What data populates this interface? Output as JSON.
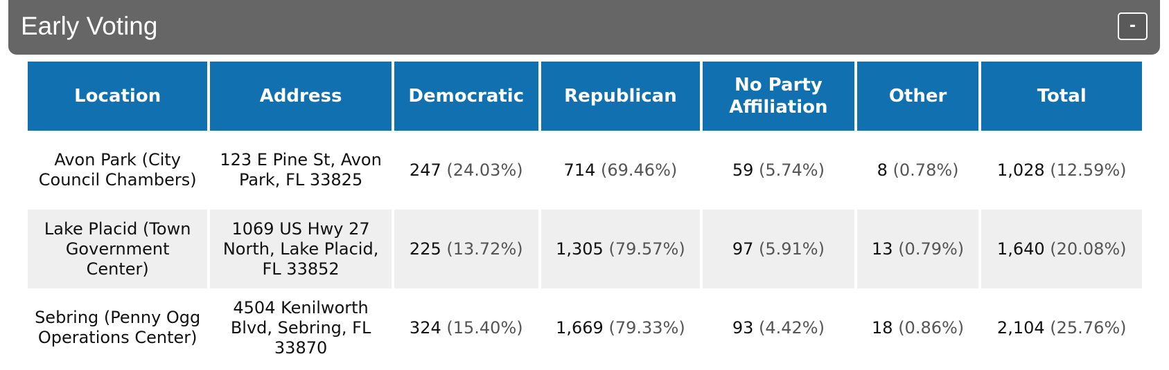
{
  "panel": {
    "title": "Early Voting",
    "collapse_label": "-"
  },
  "table": {
    "columns": [
      "Location",
      "Address",
      "Democratic",
      "Republican",
      "No Party Affiliation",
      "Other",
      "Total"
    ],
    "rows": [
      {
        "location": "Avon Park (City Council Chambers)",
        "address": "123 E Pine St, Avon Park, FL 33825",
        "democratic": {
          "count": "247",
          "pct": "(24.03%)"
        },
        "republican": {
          "count": "714",
          "pct": "(69.46%)"
        },
        "npa": {
          "count": "59",
          "pct": "(5.74%)"
        },
        "other": {
          "count": "8",
          "pct": "(0.78%)"
        },
        "total": {
          "count": "1,028",
          "pct": "(12.59%)"
        }
      },
      {
        "location": "Lake Placid (Town Government Center)",
        "address": "1069 US Hwy 27 North, Lake Placid, FL 33852",
        "democratic": {
          "count": "225",
          "pct": "(13.72%)"
        },
        "republican": {
          "count": "1,305",
          "pct": "(79.57%)"
        },
        "npa": {
          "count": "97",
          "pct": "(5.91%)"
        },
        "other": {
          "count": "13",
          "pct": "(0.79%)"
        },
        "total": {
          "count": "1,640",
          "pct": "(20.08%)"
        }
      },
      {
        "location": "Sebring (Penny Ogg Operations Center)",
        "address": "4504 Kenilworth Blvd, Sebring, FL 33870",
        "democratic": {
          "count": "324",
          "pct": "(15.40%)"
        },
        "republican": {
          "count": "1,669",
          "pct": "(79.33%)"
        },
        "npa": {
          "count": "93",
          "pct": "(4.42%)"
        },
        "other": {
          "count": "18",
          "pct": "(0.86%)"
        },
        "total": {
          "count": "2,104",
          "pct": "(25.76%)"
        }
      }
    ]
  },
  "colors": {
    "header_bar": "#666666",
    "table_header": "#1070b0",
    "alt_row": "#efefef"
  }
}
